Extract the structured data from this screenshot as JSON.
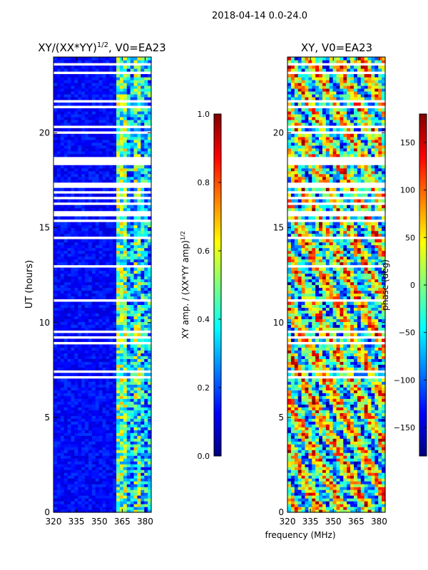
{
  "suptitle": "2018-04-14 0.0-24.0",
  "chart_data": [
    {
      "type": "heatmap",
      "title_main": "XY/(XX*YY)",
      "title_exp": "1/2",
      "title_tail": ", V0=EA23",
      "xlabel": "",
      "ylabel": "UT (hours)",
      "xlim": [
        320,
        384
      ],
      "ylim": [
        0,
        24
      ],
      "xticks": [
        "320",
        "335",
        "350",
        "365",
        "380"
      ],
      "xtick_values": [
        320,
        335,
        350,
        365,
        380
      ],
      "yticks": [
        "0",
        "5",
        "10",
        "15",
        "20"
      ],
      "ytick_values": [
        0,
        5,
        10,
        15,
        20
      ],
      "colorbar": {
        "label_main": "XY amp. / (XX*YY amp)",
        "label_exp": "1/2",
        "ticks": [
          "0.0",
          "0.2",
          "0.4",
          "0.6",
          "0.8",
          "1.0"
        ],
        "tick_values": [
          0.0,
          0.2,
          0.4,
          0.6,
          0.8,
          1.0
        ],
        "range": [
          0,
          1
        ]
      }
    },
    {
      "type": "heatmap",
      "title": "XY, V0=EA23",
      "xlabel": "frequency (MHz)",
      "ylabel": "",
      "xlim": [
        320,
        384
      ],
      "ylim": [
        0,
        24
      ],
      "xticks": [
        "320",
        "335",
        "350",
        "365",
        "380"
      ],
      "xtick_values": [
        320,
        335,
        350,
        365,
        380
      ],
      "yticks": [
        "0",
        "5",
        "10",
        "15",
        "20"
      ],
      "ytick_values": [
        0,
        5,
        10,
        15,
        20
      ],
      "colorbar": {
        "label": "phase (deg)",
        "ticks": [
          "−150",
          "−100",
          "−50",
          "0",
          "50",
          "100",
          "150"
        ],
        "tick_values": [
          -150,
          -100,
          -50,
          0,
          50,
          100,
          150
        ],
        "range": [
          -180,
          180
        ]
      }
    }
  ]
}
